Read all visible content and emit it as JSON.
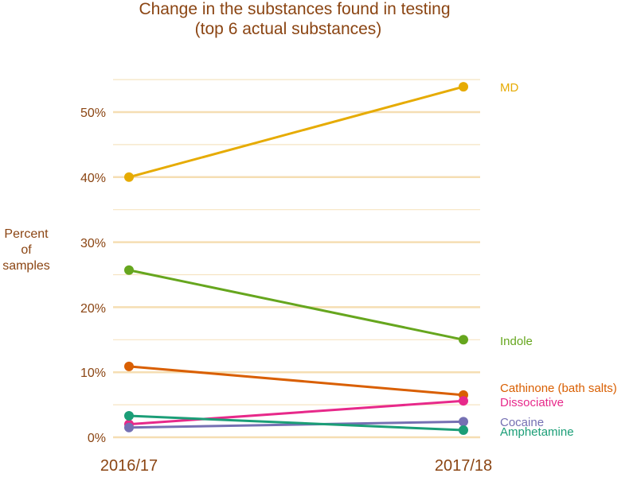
{
  "chart_data": {
    "type": "line",
    "title_lines": [
      "Change in the substances found in testing",
      "(top 6 actual substances)"
    ],
    "ylabel_lines": [
      "Percent",
      "of",
      "samples"
    ],
    "xlabel": "",
    "categories": [
      "2016/17",
      "2017/18"
    ],
    "ylim": [
      0,
      55
    ],
    "yticks": [
      0,
      10,
      20,
      30,
      40,
      50
    ],
    "ytick_labels": [
      "0%",
      "10%",
      "20%",
      "30%",
      "40%",
      "50%"
    ],
    "grid": true,
    "legend": "direct labels at right",
    "text_color": "#8B4513",
    "grid_color": "#F5DEB3",
    "series": [
      {
        "name": "MD",
        "values": [
          40.0,
          53.9
        ],
        "color": "#E6AB02"
      },
      {
        "name": "Indole",
        "values": [
          25.7,
          15.0
        ],
        "color": "#66A61E"
      },
      {
        "name": "Cathinone (bath salts)",
        "values": [
          10.9,
          6.5
        ],
        "color": "#D95F02"
      },
      {
        "name": "Dissociative",
        "values": [
          2.0,
          5.6
        ],
        "color": "#E7298A"
      },
      {
        "name": "Cocaine",
        "values": [
          1.5,
          2.4
        ],
        "color": "#7570B3"
      },
      {
        "name": "Amphetamine",
        "values": [
          3.3,
          1.1
        ],
        "color": "#1B9E77"
      }
    ]
  }
}
